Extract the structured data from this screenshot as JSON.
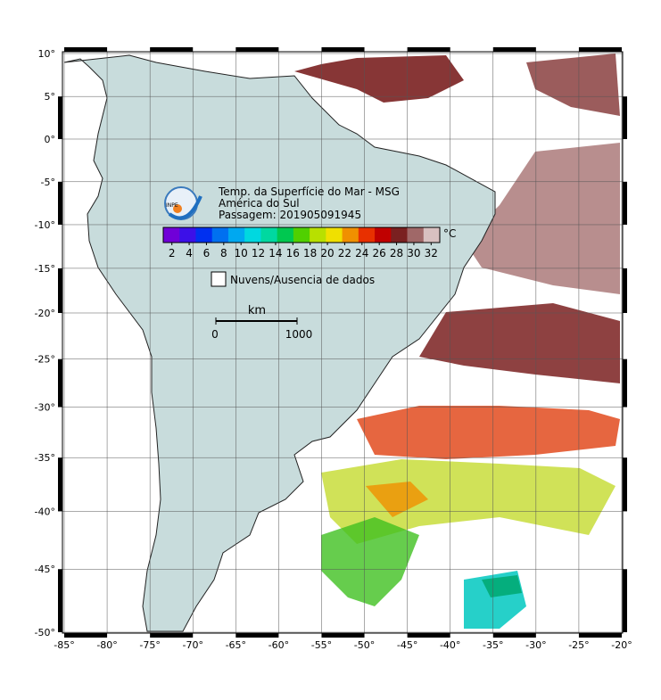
{
  "map": {
    "title": "Temp. da Superfície do Mar - MSG",
    "region": "América do Sul",
    "pass": "Passagem: 201905091945",
    "logo": "INPE",
    "colorbar": {
      "unit": "°C",
      "range": [
        1,
        33
      ],
      "ticks": [
        2,
        4,
        6,
        8,
        10,
        12,
        14,
        16,
        18,
        20,
        22,
        24,
        26,
        28,
        30,
        32
      ],
      "colors": [
        "#7000d8",
        "#3c10e8",
        "#0030f0",
        "#0070f0",
        "#00a8f0",
        "#00d8e0",
        "#00d8a0",
        "#00c850",
        "#50d000",
        "#b8e000",
        "#f0e000",
        "#f09000",
        "#e83000",
        "#c00000",
        "#7a2020",
        "#a06868",
        "#d8c0c0"
      ]
    },
    "legend": "Nuvens/Ausencia de dados",
    "scale": {
      "unit": "km",
      "labels": [
        "0",
        "1000"
      ]
    },
    "xlim": [
      -85,
      -20
    ],
    "ylim": [
      -50,
      10
    ],
    "grid": true,
    "xticks": [
      {
        "value": -85,
        "label": "-85°"
      },
      {
        "value": -80,
        "label": "-80°"
      },
      {
        "value": -75,
        "label": "-75°"
      },
      {
        "value": -70,
        "label": "-70°"
      },
      {
        "value": -65,
        "label": "-65°"
      },
      {
        "value": -60,
        "label": "-60°"
      },
      {
        "value": -55,
        "label": "-55°"
      },
      {
        "value": -50,
        "label": "-50°"
      },
      {
        "value": -45,
        "label": "-45°"
      },
      {
        "value": -40,
        "label": "-40°"
      },
      {
        "value": -35,
        "label": "-35°"
      },
      {
        "value": -30,
        "label": "-30°"
      },
      {
        "value": -25,
        "label": "-25°"
      },
      {
        "value": -20,
        "label": "-20°"
      }
    ],
    "yticks": [
      {
        "value": 10,
        "label": "10°"
      },
      {
        "value": 5,
        "label": "5°"
      },
      {
        "value": 0,
        "label": "0°"
      },
      {
        "value": -5,
        "label": "-5°"
      },
      {
        "value": -10,
        "label": "-10°"
      },
      {
        "value": -15,
        "label": "-15°"
      },
      {
        "value": -20,
        "label": "-20°"
      },
      {
        "value": -25,
        "label": "-25°"
      },
      {
        "value": -30,
        "label": "-30°"
      },
      {
        "value": -35,
        "label": "-35°"
      },
      {
        "value": -40,
        "label": "-40°"
      },
      {
        "value": -45,
        "label": "-45°"
      },
      {
        "value": -50,
        "label": "-50°"
      }
    ]
  }
}
